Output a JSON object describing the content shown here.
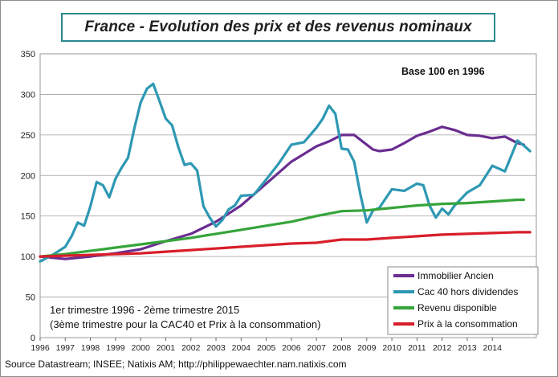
{
  "chart_data": {
    "type": "line",
    "title": "France - Evolution des prix et des revenus nominaux",
    "annotation_base": "Base 100 en 1996",
    "annotation_period_1": "1er trimestre 1996 - 2ème trimestre 2015",
    "annotation_period_2": "(3ème trimestre pour la CAC40 et Prix à la consommation)",
    "source": "Source Datastream; INSEE; Natixis AM; http://philippewaechter.nam.natixis.com",
    "ylim": [
      0,
      350
    ],
    "yticks": [
      0,
      50,
      100,
      150,
      200,
      250,
      300,
      350
    ],
    "xlim": [
      1996,
      2015.75
    ],
    "xticks": [
      "1996",
      "1997",
      "1998",
      "1999",
      "2000",
      "2001",
      "2002",
      "2003",
      "2004",
      "2005",
      "2006",
      "2007",
      "2008",
      "2009",
      "2010",
      "2011",
      "2012",
      "2013",
      "2014"
    ],
    "grid": "horizontal",
    "legend_position": "bottom-right",
    "series": [
      {
        "name": "Immobilier Ancien",
        "color": "#6a2d91",
        "x": [
          1996,
          1997,
          1998,
          1999,
          2000,
          2001,
          2002,
          2003,
          2004,
          2005,
          2006,
          2007,
          2007.5,
          2008,
          2008.5,
          2009,
          2009.25,
          2009.5,
          2010,
          2010.5,
          2011,
          2011.5,
          2012,
          2012.5,
          2013,
          2013.5,
          2014,
          2014.5,
          2015,
          2015.25
        ],
        "values": [
          100,
          97,
          100,
          104,
          109,
          119,
          128,
          143,
          163,
          190,
          217,
          236,
          242,
          250,
          250,
          238,
          232,
          230,
          232,
          240,
          249,
          254,
          260,
          256,
          250,
          249,
          246,
          248,
          240,
          238
        ]
      },
      {
        "name": "Cac 40 hors dividendes",
        "color": "#2e98b3",
        "x": [
          1996,
          1996.5,
          1997,
          1997.25,
          1997.5,
          1997.75,
          1998,
          1998.25,
          1998.5,
          1998.75,
          1999,
          1999.25,
          1999.5,
          1999.75,
          2000,
          2000.25,
          2000.5,
          2000.75,
          2001,
          2001.25,
          2001.5,
          2001.75,
          2002,
          2002.25,
          2002.5,
          2002.75,
          2003,
          2003.25,
          2003.5,
          2003.75,
          2004,
          2004.5,
          2005,
          2005.5,
          2006,
          2006.5,
          2007,
          2007.25,
          2007.5,
          2007.75,
          2008,
          2008.25,
          2008.5,
          2008.75,
          2009,
          2009.25,
          2009.5,
          2010,
          2010.5,
          2011,
          2011.25,
          2011.5,
          2011.75,
          2012,
          2012.25,
          2012.5,
          2013,
          2013.5,
          2014,
          2014.5,
          2015,
          2015.25,
          2015.5
        ],
        "values": [
          94,
          102,
          112,
          125,
          142,
          138,
          162,
          192,
          188,
          173,
          196,
          210,
          222,
          258,
          290,
          307,
          313,
          292,
          270,
          262,
          235,
          213,
          215,
          206,
          162,
          148,
          137,
          145,
          158,
          163,
          175,
          176,
          195,
          215,
          238,
          241,
          259,
          270,
          286,
          276,
          233,
          232,
          217,
          176,
          142,
          157,
          160,
          183,
          181,
          190,
          188,
          163,
          148,
          159,
          152,
          163,
          179,
          188,
          212,
          205,
          243,
          237,
          230
        ]
      },
      {
        "name": "Revenu disponible",
        "color": "#36a43a",
        "x": [
          1996,
          1997,
          1998,
          1999,
          2000,
          2001,
          2002,
          2003,
          2004,
          2005,
          2006,
          2007,
          2008,
          2009,
          2010,
          2011,
          2012,
          2013,
          2014,
          2015,
          2015.25
        ],
        "values": [
          100,
          103,
          107,
          111,
          115,
          119,
          123,
          128,
          133,
          138,
          143,
          150,
          156,
          157,
          160,
          163,
          165,
          166,
          168,
          170,
          170
        ]
      },
      {
        "name": "Prix à la consommation",
        "color": "#d81e2a",
        "x": [
          1996,
          1997,
          1998,
          1999,
          2000,
          2001,
          2002,
          2003,
          2004,
          2005,
          2006,
          2007,
          2008,
          2009,
          2010,
          2011,
          2012,
          2013,
          2014,
          2015,
          2015.5
        ],
        "values": [
          100,
          101,
          102,
          103,
          104,
          106,
          108,
          110,
          112,
          114,
          116,
          117,
          121,
          121,
          123,
          125,
          127,
          128,
          129,
          130,
          130
        ]
      }
    ]
  }
}
